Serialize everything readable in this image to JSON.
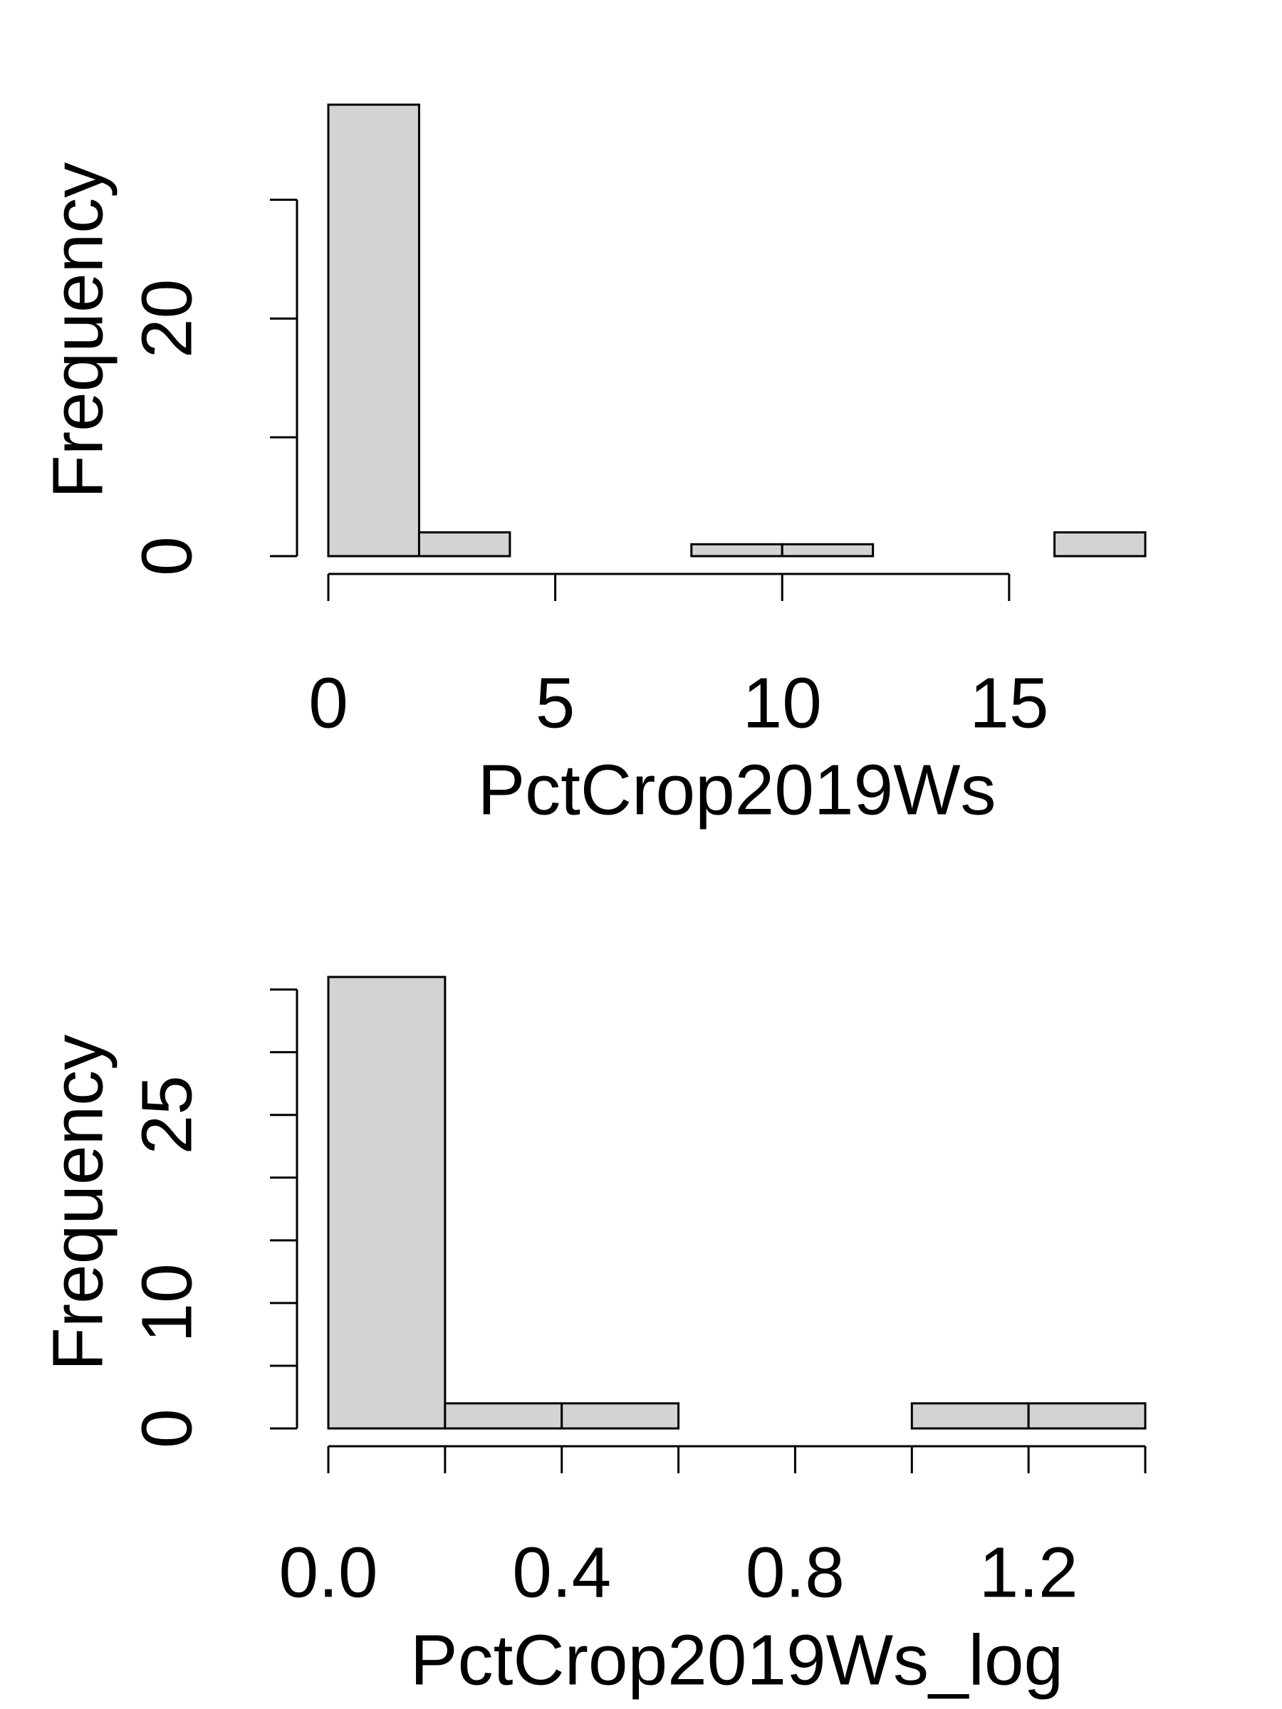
{
  "chart_data": [
    {
      "type": "histogram",
      "xlabel": "PctCrop2019Ws",
      "ylabel": "Frequency",
      "color": "#d3d3d3",
      "bins": [
        0,
        2,
        4,
        6,
        8,
        10,
        12,
        14,
        16,
        18
      ],
      "values": [
        38,
        2,
        0,
        0,
        1,
        1,
        0,
        0,
        2
      ],
      "xlim": [
        0,
        18
      ],
      "xticks": [
        0,
        5,
        10,
        15
      ],
      "ylim": [
        0,
        38
      ],
      "yticks": [
        0,
        {
          "value": 10,
          "label": null
        },
        20,
        {
          "value": 30,
          "label": null
        }
      ]
    },
    {
      "type": "histogram",
      "xlabel": "PctCrop2019Ws_log",
      "ylabel": "Frequency",
      "color": "#d3d3d3",
      "bins": [
        0,
        0.2,
        0.4,
        0.6,
        0.8,
        1.0,
        1.2,
        1.4
      ],
      "values": [
        36,
        2,
        2,
        0,
        0,
        2,
        2
      ],
      "xlim": [
        0,
        1.4
      ],
      "xticks": [
        {
          "value": 0,
          "label": "0.0"
        },
        {
          "value": 0.2,
          "label": null
        },
        0.4,
        {
          "value": 0.6,
          "label": null
        },
        0.8,
        {
          "value": 1.0,
          "label": null
        },
        1.2,
        {
          "value": 1.4,
          "label": null
        }
      ],
      "ylim": [
        0,
        36
      ],
      "yticks": [
        0,
        {
          "value": 5,
          "label": null
        },
        10,
        {
          "value": 15,
          "label": null
        },
        {
          "value": 20,
          "label": null
        },
        25,
        {
          "value": 30,
          "label": null
        },
        {
          "value": 35,
          "label": null
        }
      ]
    }
  ]
}
